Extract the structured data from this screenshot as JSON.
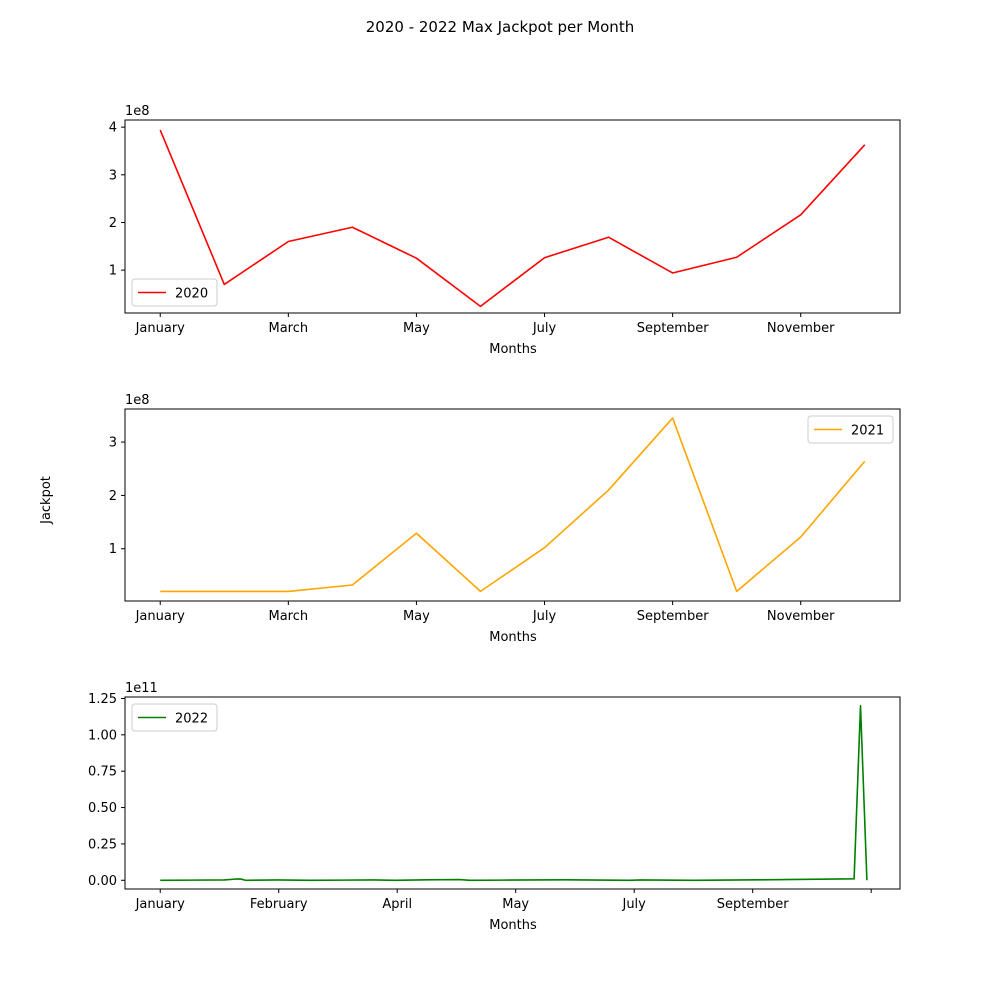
{
  "figure": {
    "title": "2020 - 2022 Max Jackpot per Month",
    "ylabel": "Jackpot"
  },
  "chart_data": [
    {
      "type": "line",
      "title": "",
      "xlabel": "Months",
      "ylabel": "",
      "offset_text": "1e8",
      "y_scale": 100000000,
      "xlim": [
        -0.55,
        11.55
      ],
      "ylim": [
        10000000,
        415000000
      ],
      "x_ticks": [
        0,
        2,
        4,
        6,
        8,
        10
      ],
      "x_tick_labels": [
        "January",
        "March",
        "May",
        "July",
        "September",
        "November"
      ],
      "y_ticks": [
        1,
        2,
        3,
        4
      ],
      "y_tick_labels": [
        "1",
        "2",
        "3",
        "4"
      ],
      "legend": "lower-left",
      "grid": false,
      "series": [
        {
          "name": "2020",
          "color": "#ff0000",
          "x": [
            0,
            1,
            2,
            3,
            4,
            5,
            6,
            7,
            8,
            9,
            10,
            11
          ],
          "y": [
            394000000,
            70000000,
            160000000,
            190000000,
            125000000,
            24000000,
            126000000,
            169000000,
            94000000,
            127000000,
            216000000,
            363000000
          ]
        }
      ]
    },
    {
      "type": "line",
      "title": "",
      "xlabel": "Months",
      "ylabel": "",
      "offset_text": "1e8",
      "y_scale": 100000000,
      "xlim": [
        -0.55,
        11.55
      ],
      "ylim": [
        2000000,
        362000000
      ],
      "x_ticks": [
        0,
        2,
        4,
        6,
        8,
        10
      ],
      "x_tick_labels": [
        "January",
        "March",
        "May",
        "July",
        "September",
        "November"
      ],
      "y_ticks": [
        1,
        2,
        3
      ],
      "y_tick_labels": [
        "1",
        "2",
        "3"
      ],
      "legend": "upper-right",
      "grid": false,
      "series": [
        {
          "name": "2021",
          "color": "#ffa500",
          "x": [
            0,
            1,
            2,
            3,
            4,
            5,
            6,
            7,
            8,
            9,
            10,
            11
          ],
          "y": [
            20000000,
            20000000,
            20000000,
            32000000,
            129000000,
            20000000,
            102000000,
            210000000,
            345000000,
            20000000,
            122000000,
            264000000
          ]
        }
      ]
    },
    {
      "type": "line",
      "title": "",
      "xlabel": "Months",
      "ylabel": "",
      "offset_text": "1e11",
      "y_scale": 100000000000,
      "xlim": [
        -3.3,
        69.3
      ],
      "ylim": [
        -6000000000,
        126000000000
      ],
      "x_ticks": [
        0,
        11.1,
        22.2,
        33.3,
        44.4,
        55.5,
        66.6
      ],
      "x_tick_labels": [
        "January",
        "February",
        "April",
        "May",
        "July",
        "September",
        ""
      ],
      "y_ticks": [
        0,
        0.25,
        0.5,
        0.75,
        1.0,
        1.25
      ],
      "y_tick_labels": [
        "0.00",
        "0.25",
        "0.50",
        "0.75",
        "1.00",
        "1.25"
      ],
      "legend": "upper-left",
      "grid": false,
      "series": [
        {
          "name": "2022",
          "color": "#008000",
          "x": [
            0,
            3,
            6,
            7,
            7.5,
            8,
            11,
            14,
            17,
            20,
            22,
            25,
            28,
            29,
            32,
            35,
            38,
            44,
            45,
            50,
            56,
            65,
            65.6,
            66.2
          ],
          "y": [
            0,
            100000000,
            200000000,
            800000000,
            900000000,
            0,
            200000000,
            0,
            100000000,
            200000000,
            0,
            300000000,
            500000000,
            0,
            100000000,
            200000000,
            300000000,
            0,
            200000000,
            0,
            300000000,
            1000000000,
            120000000000,
            0
          ]
        }
      ]
    }
  ]
}
